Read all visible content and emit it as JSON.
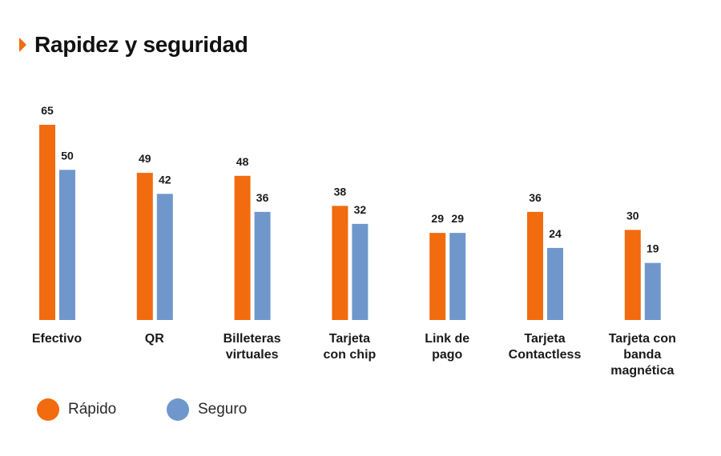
{
  "title": "Rapidez y seguridad",
  "colors": {
    "accent": "#f26b0f",
    "rapido": "#f26b0f",
    "seguro": "#6f97cc"
  },
  "chart_data": {
    "type": "bar",
    "title": "Rapidez y seguridad",
    "categories": [
      "Efectivo",
      "QR",
      "Billeteras virtuales",
      "Tarjeta con chip",
      "Link de pago",
      "Tarjeta Contactless",
      "Tarjeta con banda magnética"
    ],
    "category_lines": [
      [
        "Efectivo"
      ],
      [
        "QR"
      ],
      [
        "Billeteras",
        "virtuales"
      ],
      [
        "Tarjeta",
        "con chip"
      ],
      [
        "Link de",
        "pago"
      ],
      [
        "Tarjeta",
        "Contactless"
      ],
      [
        "Tarjeta con",
        "banda",
        "magnética"
      ]
    ],
    "series": [
      {
        "name": "Rápido",
        "color": "#f26b0f",
        "values": [
          65,
          49,
          48,
          38,
          29,
          36,
          30
        ]
      },
      {
        "name": "Seguro",
        "color": "#6f97cc",
        "values": [
          50,
          42,
          36,
          32,
          29,
          24,
          19
        ]
      }
    ],
    "ylim": [
      0,
      65
    ],
    "legend": "bottom-left",
    "grid": false,
    "xlabel": "",
    "ylabel": ""
  }
}
